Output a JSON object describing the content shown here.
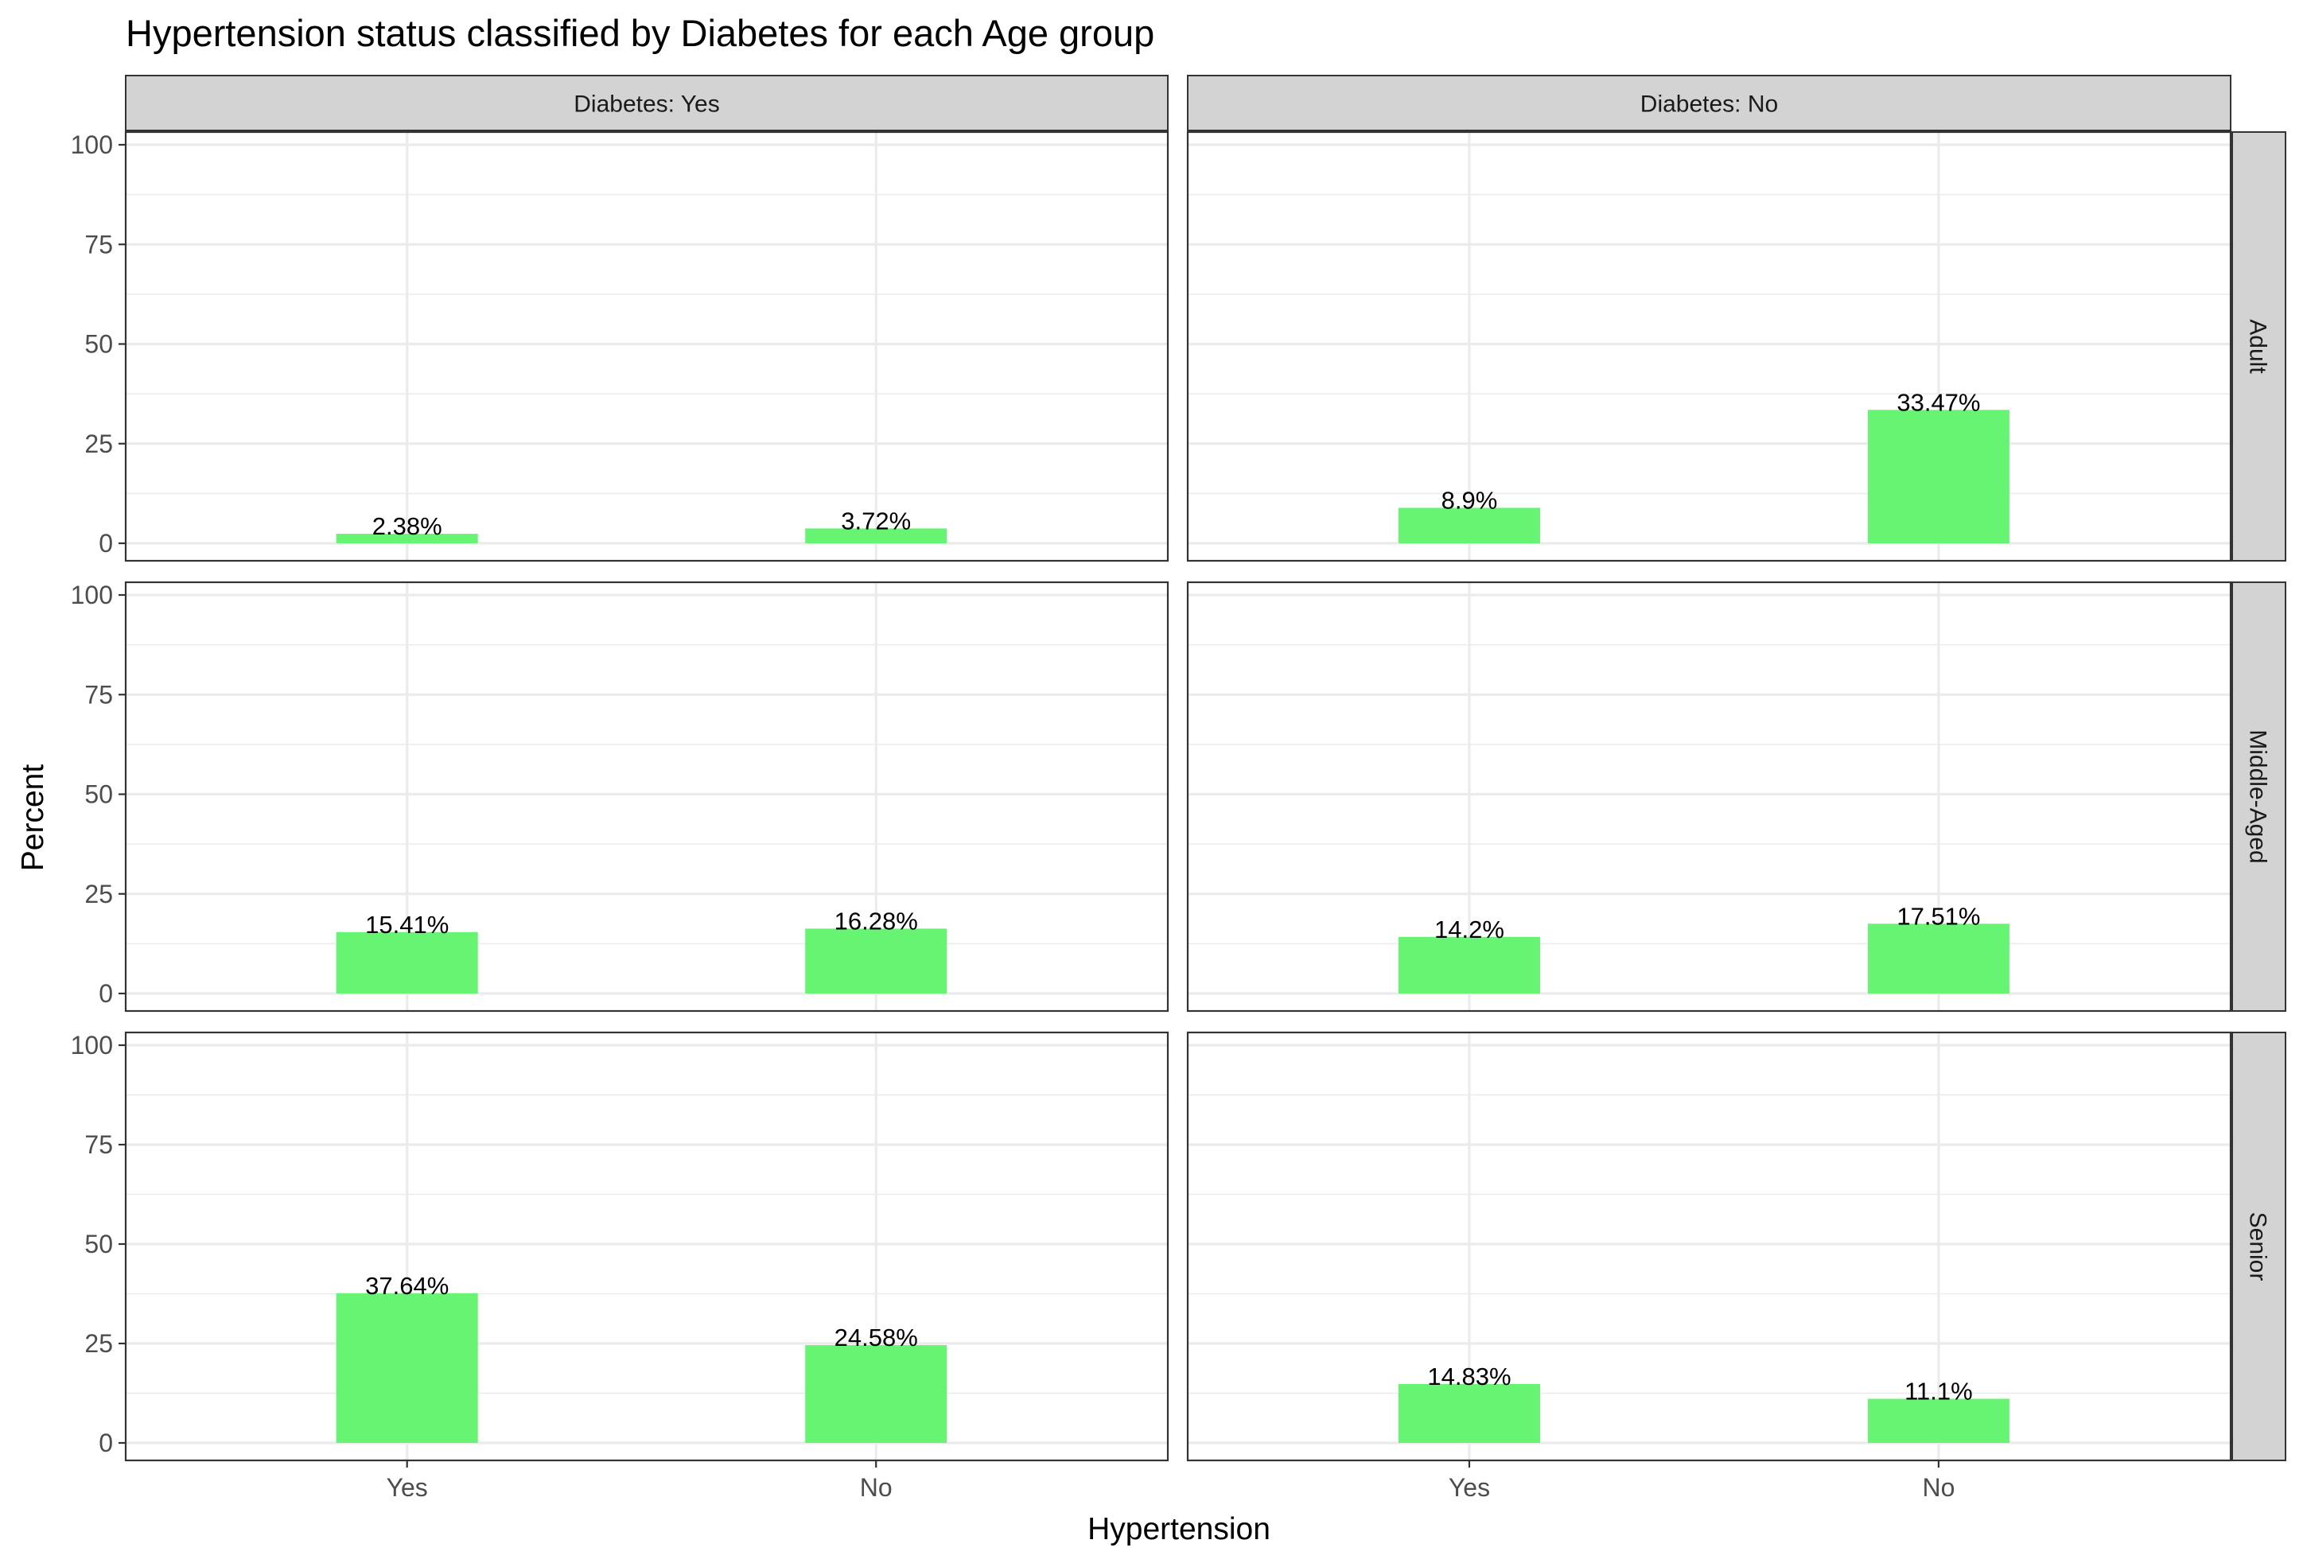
{
  "chart_data": {
    "type": "bar",
    "title": "Hypertension status classified by Diabetes for each Age group",
    "xlabel": "Hypertension",
    "ylabel": "Percent",
    "ylim": [
      0,
      100
    ],
    "yticks": [
      "0",
      "25",
      "50",
      "75",
      "100"
    ],
    "categories": [
      "Yes",
      "No"
    ],
    "facet_columns": [
      "Diabetes: Yes",
      "Diabetes: No"
    ],
    "facet_rows": [
      "Adult",
      "Middle-Aged",
      "Senior"
    ],
    "bar_color": "#66f472",
    "grid": true,
    "panels": [
      {
        "row": "Adult",
        "column": "Diabetes: Yes",
        "values": [
          2.38,
          3.72
        ],
        "labels": [
          "2.38%",
          "3.72%"
        ]
      },
      {
        "row": "Adult",
        "column": "Diabetes: No",
        "values": [
          8.9,
          33.47
        ],
        "labels": [
          "8.9%",
          "33.47%"
        ]
      },
      {
        "row": "Middle-Aged",
        "column": "Diabetes: Yes",
        "values": [
          15.41,
          16.28
        ],
        "labels": [
          "15.41%",
          "16.28%"
        ]
      },
      {
        "row": "Middle-Aged",
        "column": "Diabetes: No",
        "values": [
          14.2,
          17.51
        ],
        "labels": [
          "14.2%",
          "17.51%"
        ]
      },
      {
        "row": "Senior",
        "column": "Diabetes: Yes",
        "values": [
          37.64,
          24.58
        ],
        "labels": [
          "37.64%",
          "24.58%"
        ]
      },
      {
        "row": "Senior",
        "column": "Diabetes: No",
        "values": [
          14.83,
          11.1
        ],
        "labels": [
          "14.83%",
          "11.1%"
        ]
      }
    ]
  }
}
